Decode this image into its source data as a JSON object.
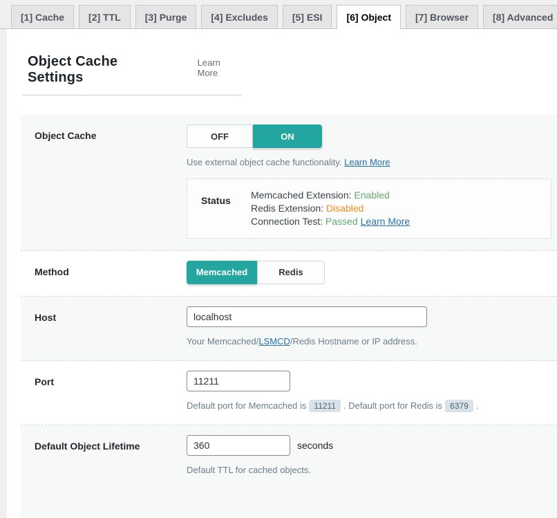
{
  "tabs": [
    {
      "label": "[1] Cache",
      "active": false
    },
    {
      "label": "[2] TTL",
      "active": false
    },
    {
      "label": "[3] Purge",
      "active": false
    },
    {
      "label": "[4] Excludes",
      "active": false
    },
    {
      "label": "[5] ESI",
      "active": false
    },
    {
      "label": "[6] Object",
      "active": true
    },
    {
      "label": "[7] Browser",
      "active": false
    },
    {
      "label": "[8] Advanced",
      "active": false
    }
  ],
  "header": {
    "title": "Object Cache Settings",
    "learn_more": "Learn More"
  },
  "colors": {
    "accent_teal": "#23a6a0",
    "status_enabled_green": "#64a874",
    "status_disabled_orange": "#f28a1d",
    "link_blue": "#2271b1"
  },
  "object_cache": {
    "label": "Object Cache",
    "toggle": {
      "off": "OFF",
      "on": "ON",
      "selected": "ON"
    },
    "description": "Use external object cache functionality. ",
    "description_link": "Learn More",
    "status": {
      "label": "Status",
      "line1_text": "Memcached Extension: ",
      "line1_value": "Enabled",
      "line2_text": "Redis Extension: ",
      "line2_value": "Disabled",
      "line3_text": "Connection Test: ",
      "line3_value": "Passed",
      "line3_link": "Learn More"
    }
  },
  "method": {
    "label": "Method",
    "option_memcached": "Memcached",
    "option_redis": "Redis",
    "selected": "Memcached"
  },
  "host": {
    "label": "Host",
    "value": "localhost",
    "desc_before": "Your Memcached/",
    "desc_link": "LSMCD",
    "desc_after": "/Redis Hostname or IP address."
  },
  "port": {
    "label": "Port",
    "value": "11211",
    "desc_part1": "Default port for Memcached is",
    "code_memcached": "11211",
    "desc_part2": ". Default port for Redis is",
    "code_redis": "6379",
    "desc_part3": "."
  },
  "lifetime": {
    "label": "Default Object Lifetime",
    "value": "360",
    "unit": "seconds",
    "desc": "Default TTL for cached objects."
  }
}
